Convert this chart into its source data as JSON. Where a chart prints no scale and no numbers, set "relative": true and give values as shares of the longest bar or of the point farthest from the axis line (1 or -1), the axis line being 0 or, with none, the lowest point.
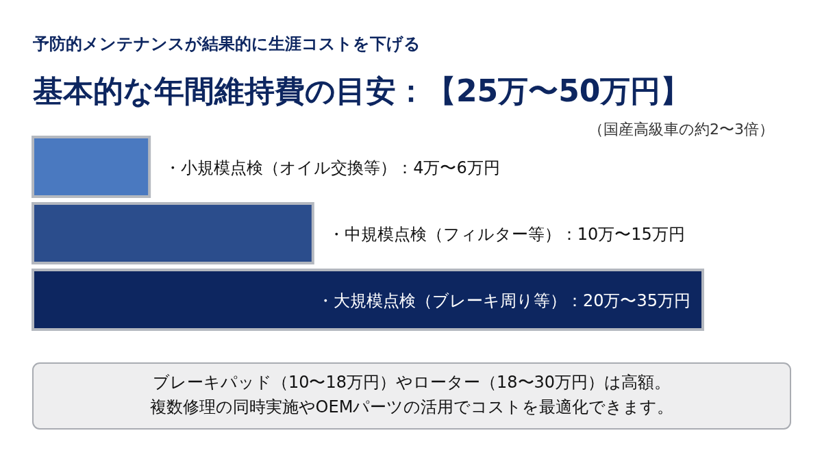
{
  "chart_data": {
    "type": "bar",
    "orientation": "horizontal",
    "relative": true,
    "subtitle": "予防的メンテナンスが結果的に生涯コストを下げる",
    "title": "基本的な年間維持費の目安：【25万〜50万円】",
    "categories": [
      "・小規模点検（オイル交換等）：4万〜6万円",
      "・中規模点検（フィルター等）：10万〜15万円",
      "・大規模点検（ブレーキ周り等）：20万〜35万円"
    ],
    "values": [
      0.174,
      0.418,
      1
    ],
    "colors": [
      "#4a79c0",
      "#2b4d8c",
      "#0d2660"
    ],
    "annotations": [
      "（国産高級車の約2〜3倍）",
      "ブレーキパッド（10〜18万円）やローター（18〜30万円）は高額。",
      "複数修理の同時実施やOEMパーツの活用でコストを最適化できます。"
    ]
  }
}
